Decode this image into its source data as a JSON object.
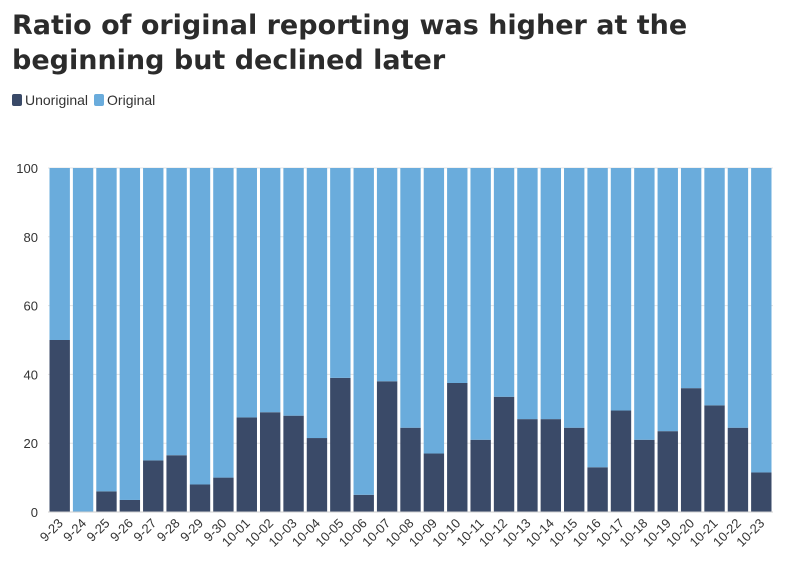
{
  "chart_data": {
    "type": "bar",
    "stacked": true,
    "title": "Ratio of original reporting was higher at the beginning but declined later",
    "xlabel": "",
    "ylabel": "",
    "ylim": [
      0,
      100
    ],
    "yticks": [
      0,
      20,
      40,
      60,
      80,
      100
    ],
    "grid": true,
    "legend_position": "top-left",
    "categories": [
      "9-23",
      "9-24",
      "9-25",
      "9-26",
      "9-27",
      "9-28",
      "9-29",
      "9-30",
      "10-01",
      "10-02",
      "10-03",
      "10-04",
      "10-05",
      "10-06",
      "10-07",
      "10-08",
      "10-09",
      "10-10",
      "10-11",
      "10-12",
      "10-13",
      "10-14",
      "10-15",
      "10-16",
      "10-17",
      "10-18",
      "10-19",
      "10-20",
      "10-21",
      "10-22",
      "10-23"
    ],
    "series": [
      {
        "name": "Unoriginal",
        "color": "#3a4a68",
        "values": [
          50,
          0,
          6,
          3.5,
          15,
          16.5,
          8,
          10,
          27.5,
          29,
          28,
          21.5,
          39,
          5,
          38,
          24.5,
          17,
          37.5,
          21,
          33.5,
          27,
          27,
          24.5,
          13,
          29.5,
          21,
          23.5,
          36,
          31,
          24.5,
          11.5
        ]
      },
      {
        "name": "Original",
        "color": "#6aacdc",
        "values": [
          50,
          100,
          94,
          96.5,
          85,
          83.5,
          92,
          90,
          72.5,
          71,
          72,
          78.5,
          61,
          95,
          62,
          75.5,
          83,
          62.5,
          79,
          66.5,
          73,
          73,
          75.5,
          87,
          70.5,
          79,
          76.5,
          64,
          69,
          75.5,
          88.5
        ]
      }
    ]
  }
}
